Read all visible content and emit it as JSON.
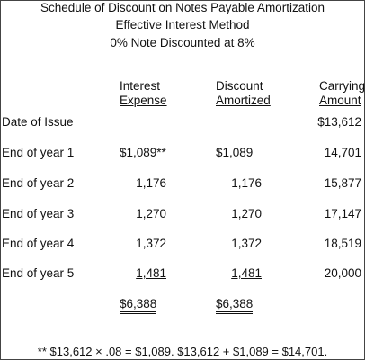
{
  "titles": {
    "line1": "Schedule of Discount on Notes Payable Amortization",
    "line2": "Effective Interest Method",
    "line3": "0% Note Discounted at 8%"
  },
  "headers": {
    "interest_top": "Interest",
    "interest_bottom": "Expense",
    "discount_top": "Discount",
    "discount_bottom": "Amortized",
    "carrying_top": "Carrying",
    "carrying_bottom": "Amount"
  },
  "rows": [
    {
      "label": "Date of Issue",
      "interest": "",
      "discount": "",
      "carrying": "$13,612"
    },
    {
      "label": "End of year 1",
      "interest": "$1,089**",
      "discount": "$1,089",
      "carrying": "14,701"
    },
    {
      "label": "End of year 2",
      "interest": "1,176",
      "discount": "1,176",
      "carrying": "15,877"
    },
    {
      "label": "End of year 3",
      "interest": "1,270",
      "discount": "1,270",
      "carrying": "17,147"
    },
    {
      "label": "End of year 4",
      "interest": "1,372",
      "discount": "1,372",
      "carrying": "18,519"
    },
    {
      "label": "End of year 5",
      "interest": "1,481",
      "discount": "1,481",
      "carrying": "20,000"
    }
  ],
  "totals": {
    "interest": "$6,388",
    "discount": "$6,388"
  },
  "footnote": "** $13,612 × .08 = $1,089.  $13,612 + $1,089 = $14,701."
}
